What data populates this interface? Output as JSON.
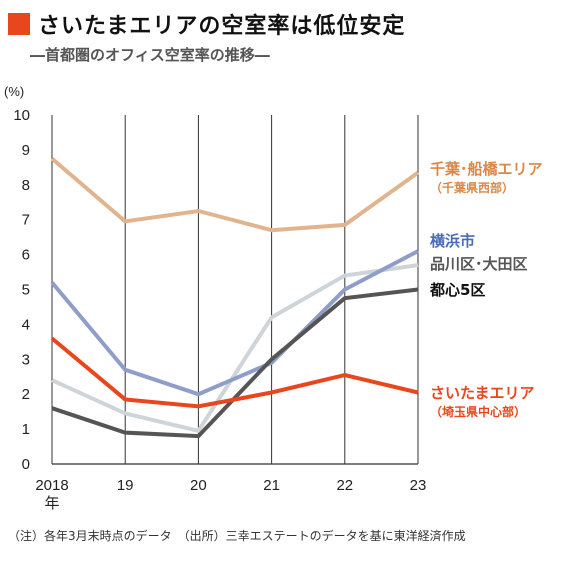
{
  "header": {
    "title": "さいたまエリアの空室率は低位安定",
    "subtitle": "―首都圏のオフィス空室率の推移―"
  },
  "footer": {
    "note": "（注）各年3月末時点のデータ　（出所）三幸エステートのデータを基に東洋経済作成"
  },
  "colors": {
    "accent": "#e8461c",
    "chiba": "#e2b48e",
    "yokohama": "#8e9ec9",
    "shinagawa": "#cfd4d9",
    "toshin": "#555555",
    "saitama": "#e8461c"
  },
  "chart_data": {
    "type": "line",
    "x": [
      "2018",
      "19",
      "20",
      "21",
      "22",
      "23"
    ],
    "x_first_suffix": "年",
    "ylabel": "(%)",
    "ylim": [
      0,
      10
    ],
    "yticks": [
      0,
      1,
      2,
      3,
      4,
      5,
      6,
      7,
      8,
      9,
      10
    ],
    "grid": "vertical",
    "series": [
      {
        "key": "chiba",
        "name": "千葉･船橋エリア",
        "sub": "（千葉県西部）",
        "values": [
          8.75,
          6.95,
          7.25,
          6.7,
          6.85,
          8.35
        ]
      },
      {
        "key": "shinagawa",
        "name": "品川区･大田区",
        "sub": "",
        "values": [
          2.4,
          1.45,
          0.95,
          4.2,
          5.4,
          5.7
        ]
      },
      {
        "key": "yokohama",
        "name": "横浜市",
        "sub": "",
        "values": [
          5.2,
          2.7,
          2.0,
          2.9,
          5.0,
          6.1
        ]
      },
      {
        "key": "toshin",
        "name": "都心5区",
        "sub": "",
        "values": [
          1.6,
          0.9,
          0.8,
          3.0,
          4.75,
          5.0
        ]
      },
      {
        "key": "saitama",
        "name": "さいたまエリア",
        "sub": "（埼玉県中心部）",
        "values": [
          3.6,
          1.85,
          1.65,
          2.05,
          2.55,
          2.05
        ]
      }
    ]
  }
}
